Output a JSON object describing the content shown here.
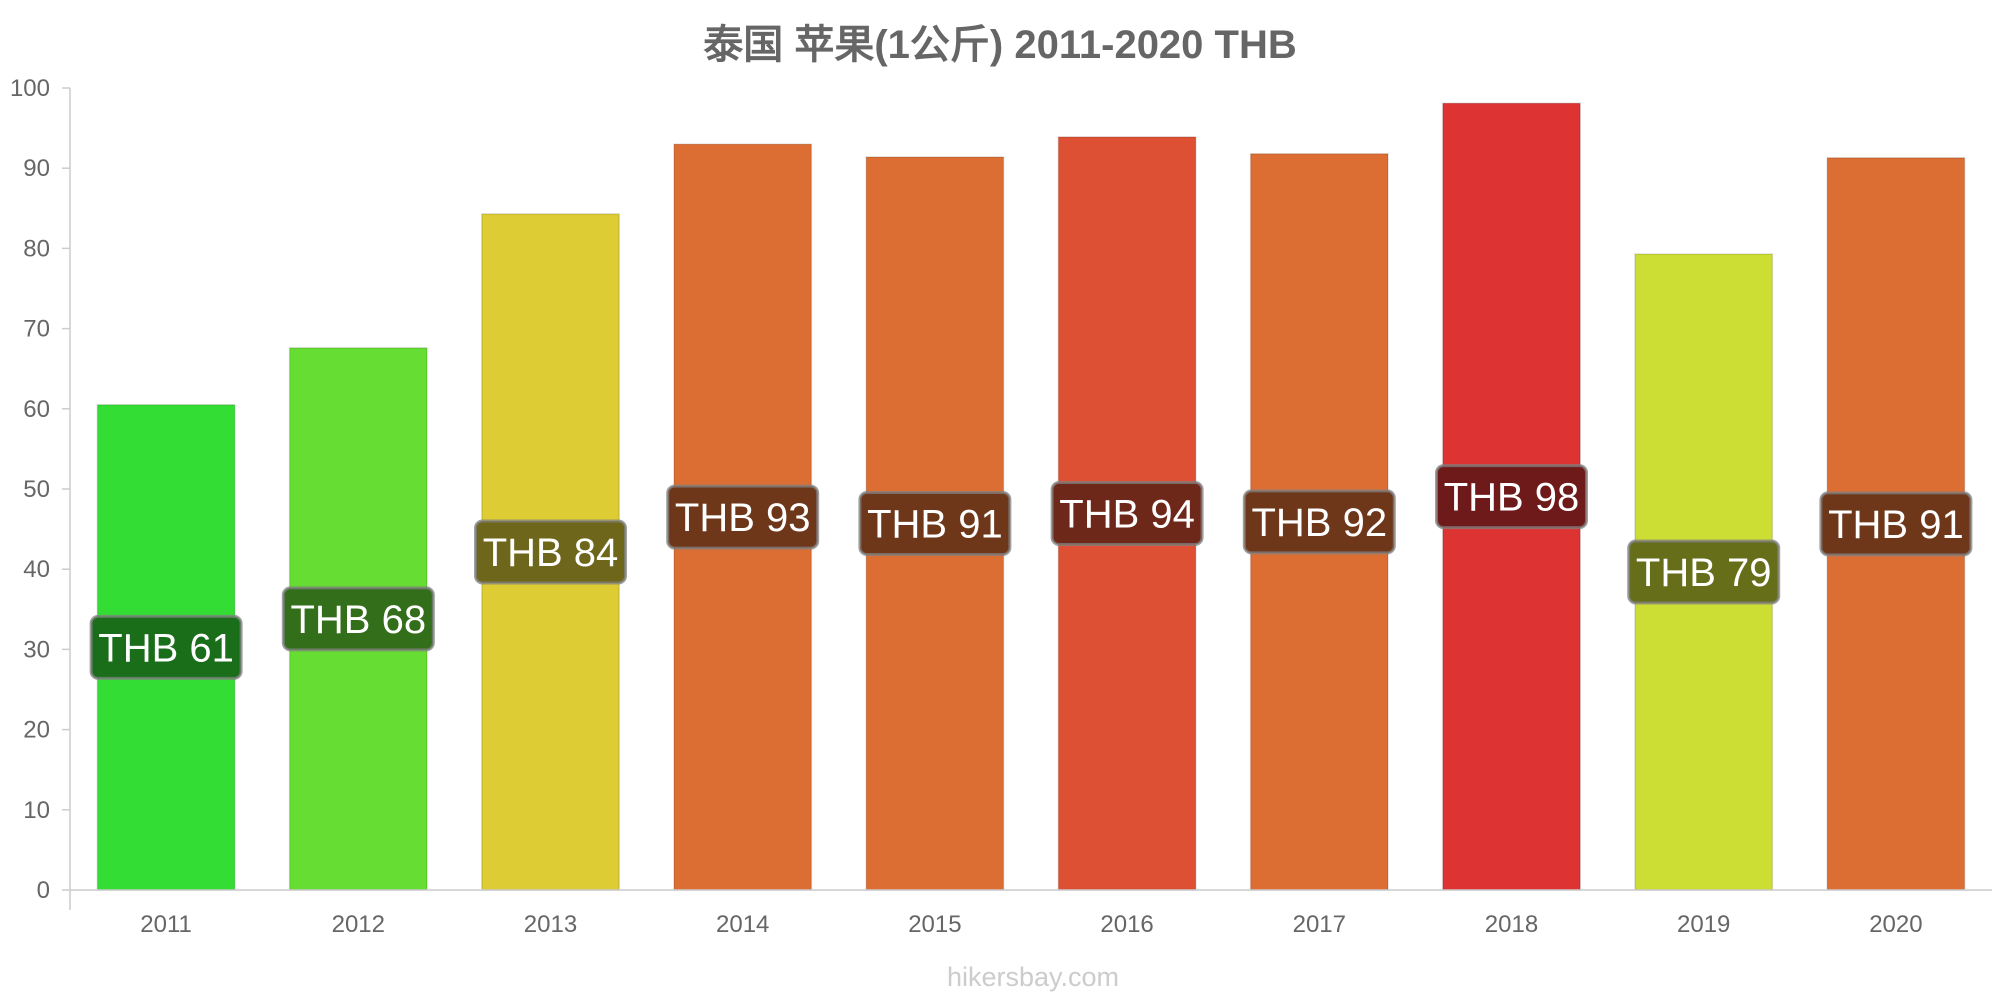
{
  "chart_data": {
    "type": "bar",
    "title": "泰国 苹果(1公斤) 2011-2020 THB",
    "categories": [
      "2011",
      "2012",
      "2013",
      "2014",
      "2015",
      "2016",
      "2017",
      "2018",
      "2019",
      "2020"
    ],
    "values": [
      60.5,
      67.6,
      84.3,
      93.0,
      91.4,
      93.9,
      91.8,
      98.1,
      79.3,
      91.3
    ],
    "data_labels": [
      "THB 61",
      "THB 68",
      "THB 84",
      "THB 93",
      "THB 91",
      "THB 94",
      "THB 92",
      "THB 98",
      "THB 79",
      "THB 91"
    ],
    "bar_colors": [
      "#33dd33",
      "#66dd33",
      "#ddcc33",
      "#dd6e33",
      "#dd6e33",
      "#dd5033",
      "#dd6e33",
      "#dd3333",
      "#ccdd33",
      "#dd6e33"
    ],
    "label_bg_colors": [
      "#1a6e1a",
      "#336e1a",
      "#6e661a",
      "#6e371a",
      "#6e371a",
      "#6e281a",
      "#6e371a",
      "#6e1a1a",
      "#666e1a",
      "#6e371a"
    ],
    "yticks": [
      0,
      10,
      20,
      30,
      40,
      50,
      60,
      70,
      80,
      90,
      100
    ],
    "ylim": [
      0,
      100
    ],
    "xlabel": "",
    "ylabel": "",
    "grid": false,
    "legend": "none"
  },
  "footer": {
    "source_text": "hikersbay.com"
  }
}
